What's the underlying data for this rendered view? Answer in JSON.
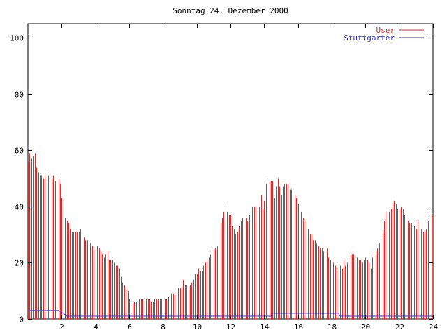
{
  "chart_data": {
    "type": "bar",
    "title": "Sonntag 24. Dezember 2000",
    "xlabel": "",
    "ylabel": "",
    "xlim": [
      0,
      24
    ],
    "ylim": [
      0,
      105
    ],
    "x_ticks": [
      "2",
      "4",
      "6",
      "8",
      "10",
      "12",
      "14",
      "16",
      "18",
      "20",
      "22",
      "24"
    ],
    "y_ticks": [
      "0",
      "20",
      "40",
      "60",
      "80",
      "100"
    ],
    "grid": false,
    "legend_position": "top-right",
    "colors": {
      "User": "#cc3333",
      "Stuttgarter": "#3333cc"
    },
    "series": [
      {
        "name": "User",
        "type": "impulses",
        "x": [
          0.0,
          0.1,
          0.2,
          0.3,
          0.4,
          0.5,
          0.6,
          0.7,
          0.8,
          0.9,
          1.0,
          1.1,
          1.2,
          1.3,
          1.4,
          1.5,
          1.6,
          1.7,
          1.8,
          1.9,
          2.0,
          2.1,
          2.2,
          2.3,
          2.4,
          2.5,
          2.6,
          2.7,
          2.8,
          2.9,
          3.0,
          3.1,
          3.2,
          3.3,
          3.4,
          3.5,
          3.6,
          3.7,
          3.8,
          3.9,
          4.0,
          4.1,
          4.2,
          4.3,
          4.4,
          4.5,
          4.6,
          4.7,
          4.8,
          4.9,
          5.0,
          5.1,
          5.2,
          5.3,
          5.4,
          5.5,
          5.6,
          5.7,
          5.8,
          5.9,
          6.0,
          6.1,
          6.2,
          6.3,
          6.4,
          6.5,
          6.6,
          6.7,
          6.8,
          6.9,
          7.0,
          7.1,
          7.2,
          7.3,
          7.4,
          7.5,
          7.6,
          7.7,
          7.8,
          7.9,
          8.0,
          8.1,
          8.2,
          8.3,
          8.4,
          8.5,
          8.6,
          8.7,
          8.8,
          8.9,
          9.0,
          9.1,
          9.2,
          9.3,
          9.4,
          9.5,
          9.6,
          9.7,
          9.8,
          9.9,
          10.0,
          10.1,
          10.2,
          10.3,
          10.4,
          10.5,
          10.6,
          10.7,
          10.8,
          10.9,
          11.0,
          11.1,
          11.2,
          11.3,
          11.4,
          11.5,
          11.6,
          11.7,
          11.8,
          11.9,
          12.0,
          12.1,
          12.2,
          12.3,
          12.4,
          12.5,
          12.6,
          12.7,
          12.8,
          12.9,
          13.0,
          13.1,
          13.2,
          13.3,
          13.4,
          13.5,
          13.6,
          13.7,
          13.8,
          13.9,
          14.0,
          14.1,
          14.2,
          14.3,
          14.4,
          14.5,
          14.6,
          14.7,
          14.8,
          14.9,
          15.0,
          15.1,
          15.2,
          15.3,
          15.4,
          15.5,
          15.6,
          15.7,
          15.8,
          15.9,
          16.0,
          16.1,
          16.2,
          16.3,
          16.4,
          16.5,
          16.6,
          16.7,
          16.8,
          16.9,
          17.0,
          17.1,
          17.2,
          17.3,
          17.4,
          17.5,
          17.6,
          17.7,
          17.8,
          17.9,
          18.0,
          18.1,
          18.2,
          18.3,
          18.4,
          18.5,
          18.6,
          18.7,
          18.8,
          18.9,
          19.0,
          19.1,
          19.2,
          19.3,
          19.4,
          19.5,
          19.6,
          19.7,
          19.8,
          19.9,
          20.0,
          20.1,
          20.2,
          20.3,
          20.4,
          20.5,
          20.6,
          20.7,
          20.8,
          20.9,
          21.0,
          21.1,
          21.2,
          21.3,
          21.4,
          21.5,
          21.6,
          21.7,
          21.8,
          21.9,
          22.0,
          22.1,
          22.2,
          22.3,
          22.4,
          22.5,
          22.6,
          22.7,
          22.8,
          22.9,
          23.0,
          23.1,
          23.2,
          23.3,
          23.4,
          23.5,
          23.6,
          23.7,
          23.8,
          23.9
        ],
        "values": [
          56,
          59,
          57,
          58,
          59,
          54,
          52,
          51,
          51,
          50,
          51,
          52,
          51,
          49,
          50,
          51,
          49,
          51,
          50,
          48,
          43,
          38,
          36,
          35,
          34,
          32,
          31,
          31,
          31,
          31,
          31,
          32,
          30,
          29,
          28,
          28,
          28,
          27,
          26,
          25,
          25,
          26,
          25,
          24,
          23,
          22,
          23,
          24,
          21,
          21,
          21,
          20,
          19,
          19,
          18,
          15,
          13,
          12,
          11,
          10,
          7,
          6,
          6,
          6,
          6,
          6,
          7,
          7,
          7,
          7,
          7,
          7,
          7,
          6,
          6,
          7,
          7,
          7,
          7,
          7,
          7,
          7,
          7,
          8,
          10,
          9,
          9,
          9,
          9,
          11,
          11,
          11,
          14,
          12,
          12,
          11,
          12,
          13,
          14,
          16,
          16,
          18,
          17,
          17,
          19,
          20,
          21,
          22,
          23,
          25,
          25,
          25,
          26,
          32,
          34,
          36,
          38,
          41,
          38,
          37,
          37,
          33,
          32,
          30,
          31,
          33,
          35,
          36,
          35,
          36,
          35,
          37,
          38,
          40,
          40,
          40,
          39,
          40,
          44,
          39,
          42,
          48,
          50,
          49,
          49,
          49,
          43,
          47,
          50,
          47,
          44,
          47,
          48,
          48,
          48,
          46,
          46,
          45,
          44,
          43,
          41,
          40,
          38,
          36,
          35,
          34,
          32,
          30,
          30,
          28,
          28,
          27,
          26,
          25,
          25,
          24,
          24,
          25,
          22,
          21,
          21,
          20,
          19,
          18,
          19,
          19,
          18,
          21,
          19,
          20,
          21,
          23,
          23,
          23,
          22,
          22,
          21,
          21,
          20,
          21,
          22,
          21,
          20,
          18,
          22,
          23,
          24,
          25,
          27,
          29,
          31,
          35,
          38,
          39,
          38,
          39,
          41,
          42,
          41,
          39,
          39,
          40,
          39,
          37,
          36,
          35,
          34,
          34,
          33,
          33,
          32,
          35,
          34,
          32,
          31,
          31,
          32,
          35,
          37,
          37
        ]
      },
      {
        "name": "Stuttgarter",
        "type": "line",
        "points": [
          [
            0,
            3
          ],
          [
            1.8,
            3
          ],
          [
            2.1,
            2
          ],
          [
            2.3,
            1
          ],
          [
            14.4,
            1
          ],
          [
            14.5,
            2
          ],
          [
            18.4,
            2
          ],
          [
            18.5,
            1
          ],
          [
            24,
            1
          ]
        ]
      }
    ]
  }
}
